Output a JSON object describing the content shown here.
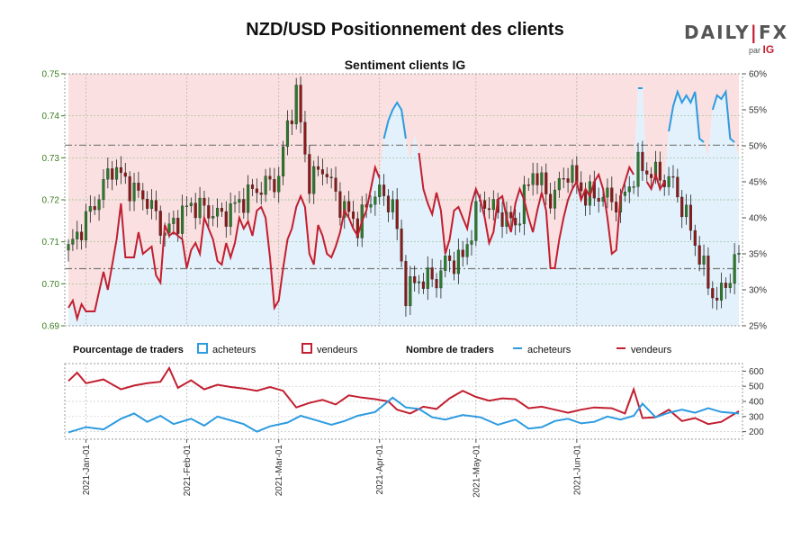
{
  "title": "NZD/USD Positionnement des clients",
  "logo": {
    "brand_left": "DAILY",
    "brand_sep": "|",
    "brand_right": "FX",
    "by": "par",
    "ig": "IG"
  },
  "colors": {
    "buyers": "#2d9be0",
    "sellers": "#c21f30",
    "pink_fill": "#fae0e0",
    "blue_fill": "#e2f1fb",
    "candle_up": "#2a7a2a",
    "candle_down": "#8a1a1a",
    "left_axis": "#3a7d1e",
    "ref_line": "#777777"
  },
  "chart_data": [
    {
      "id": "sentiment",
      "type": "candlestick+line",
      "subtitle": "Sentiment clients IG",
      "y_left": {
        "ticks": [
          "0.69",
          "0.70",
          "0.71",
          "0.72",
          "0.73",
          "0.74",
          "0.75"
        ],
        "range": [
          0.69,
          0.75
        ]
      },
      "y_right": {
        "ticks": [
          "25%",
          "30%",
          "35%",
          "40%",
          "45%",
          "50%",
          "55%",
          "60%"
        ],
        "range": [
          25,
          60
        ]
      },
      "x_ticks": [
        "2021-Jan-01",
        "2021-Feb-01",
        "2021-Mar-01",
        "2021-Apr-01",
        "2021-May-01",
        "2021-Jun-01"
      ],
      "ref_lines": [
        0.733,
        0.7036
      ],
      "long_pct_series": [
        [
          0,
          27.5
        ],
        [
          1,
          28.5
        ],
        [
          2,
          26.0
        ],
        [
          3,
          28.0
        ],
        [
          4,
          27.0
        ],
        [
          6,
          27.0
        ],
        [
          8,
          32.5
        ],
        [
          9,
          30.0
        ],
        [
          11,
          37.0
        ],
        [
          12,
          42.0
        ],
        [
          13,
          34.5
        ],
        [
          15,
          34.5
        ],
        [
          16,
          38.0
        ],
        [
          17,
          35.0
        ],
        [
          19,
          36.0
        ],
        [
          20,
          32.0
        ],
        [
          21,
          31.0
        ],
        [
          22,
          39.0
        ],
        [
          23,
          37.5
        ],
        [
          24,
          38.0
        ],
        [
          26,
          37.0
        ],
        [
          27,
          33.0
        ],
        [
          28,
          35.5
        ],
        [
          29,
          36.5
        ],
        [
          30,
          35.0
        ],
        [
          31,
          40.0
        ],
        [
          32,
          38.5
        ],
        [
          33,
          37.0
        ],
        [
          34,
          34.0
        ],
        [
          35,
          33.5
        ],
        [
          36,
          36.5
        ],
        [
          37,
          34.5
        ],
        [
          38,
          36.5
        ],
        [
          39,
          40.0
        ],
        [
          40,
          38.5
        ],
        [
          41,
          39.5
        ],
        [
          42,
          37.5
        ],
        [
          43,
          41.0
        ],
        [
          44,
          41.5
        ],
        [
          45,
          40.0
        ],
        [
          46,
          34.5
        ],
        [
          47,
          27.5
        ],
        [
          48,
          28.5
        ],
        [
          49,
          33.0
        ],
        [
          50,
          37.0
        ],
        [
          51,
          38.5
        ],
        [
          52,
          41.5
        ],
        [
          53,
          43.0
        ],
        [
          54,
          41.5
        ],
        [
          55,
          35.0
        ],
        [
          56,
          33.5
        ],
        [
          57,
          39.0
        ],
        [
          58,
          37.5
        ],
        [
          59,
          35.0
        ],
        [
          60,
          34.5
        ],
        [
          61,
          36.0
        ],
        [
          62,
          38.0
        ],
        [
          63,
          41.0
        ],
        [
          64,
          40.0
        ],
        [
          65,
          38.5
        ],
        [
          66,
          37.5
        ],
        [
          67,
          39.5
        ],
        [
          68,
          41.0
        ],
        [
          69,
          44.0
        ],
        [
          70,
          47.0
        ],
        [
          71,
          45.5
        ],
        [
          72,
          51.0
        ],
        [
          73,
          53.5
        ],
        [
          74,
          55.0
        ],
        [
          75,
          56.0
        ],
        [
          76,
          55.0
        ],
        [
          77,
          51.0
        ],
        [
          78,
          48.0
        ],
        [
          79,
          51.5
        ],
        [
          80,
          49.0
        ],
        [
          81,
          44.0
        ],
        [
          82,
          42.0
        ],
        [
          83,
          40.5
        ],
        [
          84,
          43.5
        ],
        [
          85,
          41.0
        ],
        [
          86,
          35.0
        ],
        [
          87,
          37.0
        ],
        [
          88,
          41.0
        ],
        [
          89,
          41.5
        ],
        [
          90,
          40.0
        ],
        [
          91,
          38.5
        ],
        [
          92,
          42.0
        ],
        [
          93,
          44.0
        ],
        [
          94,
          42.5
        ],
        [
          95,
          40.0
        ],
        [
          96,
          36.5
        ],
        [
          97,
          38.0
        ],
        [
          98,
          42.5
        ],
        [
          99,
          43.0
        ],
        [
          100,
          40.0
        ],
        [
          101,
          38.0
        ],
        [
          102,
          42.0
        ],
        [
          103,
          44.0
        ],
        [
          104,
          42.5
        ],
        [
          105,
          40.0
        ],
        [
          106,
          38.0
        ],
        [
          107,
          41.0
        ],
        [
          108,
          43.5
        ],
        [
          109,
          41.0
        ],
        [
          110,
          33.0
        ],
        [
          111,
          33.0
        ],
        [
          112,
          37.0
        ],
        [
          113,
          40.0
        ],
        [
          114,
          42.5
        ],
        [
          115,
          44.0
        ],
        [
          116,
          45.0
        ],
        [
          117,
          42.5
        ],
        [
          118,
          44.0
        ],
        [
          119,
          43.0
        ],
        [
          120,
          45.0
        ],
        [
          121,
          46.0
        ],
        [
          122,
          44.0
        ],
        [
          123,
          40.0
        ],
        [
          124,
          35.0
        ],
        [
          125,
          35.5
        ],
        [
          126,
          43.0
        ],
        [
          127,
          45.0
        ],
        [
          128,
          47.0
        ],
        [
          129,
          46.0
        ],
        [
          130,
          58.0
        ],
        [
          131,
          58.0
        ],
        [
          132,
          45.0
        ],
        [
          133,
          44.0
        ],
        [
          134,
          46.0
        ],
        [
          135,
          44.0
        ],
        [
          136,
          45.0
        ],
        [
          137,
          52.0
        ],
        [
          138,
          55.5
        ],
        [
          139,
          57.5
        ],
        [
          140,
          56.0
        ],
        [
          141,
          57.0
        ],
        [
          142,
          56.0
        ],
        [
          143,
          57.5
        ],
        [
          144,
          51.0
        ],
        [
          145,
          50.5
        ],
        [
          146,
          48.5
        ],
        [
          147,
          55.0
        ],
        [
          148,
          57.0
        ],
        [
          149,
          56.5
        ],
        [
          150,
          57.5
        ],
        [
          151,
          51.0
        ],
        [
          152,
          50.5
        ],
        [
          153,
          48.5
        ]
      ],
      "price_path": [
        [
          0,
          0.708
        ],
        [
          6,
          0.719
        ],
        [
          10,
          0.728
        ],
        [
          15,
          0.722
        ],
        [
          18,
          0.72
        ],
        [
          22,
          0.712
        ],
        [
          28,
          0.719
        ],
        [
          35,
          0.716
        ],
        [
          42,
          0.722
        ],
        [
          48,
          0.725
        ],
        [
          50,
          0.738
        ],
        [
          52,
          0.745
        ],
        [
          55,
          0.724
        ],
        [
          58,
          0.728
        ],
        [
          62,
          0.719
        ],
        [
          66,
          0.714
        ],
        [
          70,
          0.722
        ],
        [
          74,
          0.719
        ],
        [
          77,
          0.698
        ],
        [
          80,
          0.701
        ],
        [
          84,
          0.701
        ],
        [
          86,
          0.705
        ],
        [
          90,
          0.706
        ],
        [
          94,
          0.72
        ],
        [
          98,
          0.717
        ],
        [
          102,
          0.714
        ],
        [
          106,
          0.727
        ],
        [
          110,
          0.72
        ],
        [
          114,
          0.727
        ],
        [
          118,
          0.721
        ],
        [
          122,
          0.721
        ],
        [
          126,
          0.719
        ],
        [
          130,
          0.728
        ],
        [
          134,
          0.726
        ],
        [
          138,
          0.724
        ],
        [
          142,
          0.713
        ],
        [
          146,
          0.7
        ],
        [
          148,
          0.696
        ],
        [
          150,
          0.7
        ],
        [
          153,
          0.707
        ]
      ]
    },
    {
      "id": "trader_counts",
      "type": "line",
      "y_ticks": [
        "200",
        "300",
        "400",
        "500",
        "600"
      ],
      "y_range": [
        150,
        650
      ],
      "buyers_series": [
        [
          0,
          195
        ],
        [
          4,
          230
        ],
        [
          8,
          215
        ],
        [
          12,
          285
        ],
        [
          15,
          320
        ],
        [
          18,
          265
        ],
        [
          21,
          305
        ],
        [
          24,
          250
        ],
        [
          28,
          285
        ],
        [
          31,
          240
        ],
        [
          34,
          300
        ],
        [
          37,
          275
        ],
        [
          40,
          250
        ],
        [
          43,
          200
        ],
        [
          46,
          235
        ],
        [
          50,
          260
        ],
        [
          53,
          305
        ],
        [
          56,
          280
        ],
        [
          60,
          245
        ],
        [
          63,
          270
        ],
        [
          66,
          305
        ],
        [
          70,
          330
        ],
        [
          74,
          425
        ],
        [
          77,
          360
        ],
        [
          80,
          350
        ],
        [
          83,
          295
        ],
        [
          86,
          280
        ],
        [
          90,
          310
        ],
        [
          94,
          295
        ],
        [
          98,
          245
        ],
        [
          102,
          280
        ],
        [
          105,
          220
        ],
        [
          108,
          230
        ],
        [
          111,
          270
        ],
        [
          114,
          285
        ],
        [
          117,
          255
        ],
        [
          120,
          265
        ],
        [
          123,
          300
        ],
        [
          126,
          280
        ],
        [
          129,
          305
        ],
        [
          131,
          385
        ],
        [
          134,
          295
        ],
        [
          137,
          325
        ],
        [
          140,
          345
        ],
        [
          143,
          325
        ],
        [
          146,
          355
        ],
        [
          149,
          330
        ],
        [
          153,
          320
        ]
      ],
      "sellers_series": [
        [
          0,
          535
        ],
        [
          2,
          590
        ],
        [
          4,
          520
        ],
        [
          8,
          545
        ],
        [
          12,
          480
        ],
        [
          15,
          505
        ],
        [
          18,
          520
        ],
        [
          21,
          530
        ],
        [
          23,
          620
        ],
        [
          25,
          490
        ],
        [
          28,
          540
        ],
        [
          31,
          480
        ],
        [
          34,
          510
        ],
        [
          37,
          495
        ],
        [
          40,
          485
        ],
        [
          43,
          470
        ],
        [
          46,
          495
        ],
        [
          49,
          470
        ],
        [
          52,
          360
        ],
        [
          55,
          390
        ],
        [
          58,
          410
        ],
        [
          61,
          380
        ],
        [
          64,
          440
        ],
        [
          67,
          425
        ],
        [
          70,
          415
        ],
        [
          73,
          400
        ],
        [
          75,
          345
        ],
        [
          78,
          320
        ],
        [
          81,
          365
        ],
        [
          84,
          350
        ],
        [
          87,
          420
        ],
        [
          90,
          470
        ],
        [
          93,
          430
        ],
        [
          96,
          405
        ],
        [
          99,
          420
        ],
        [
          102,
          415
        ],
        [
          105,
          355
        ],
        [
          108,
          365
        ],
        [
          111,
          345
        ],
        [
          114,
          325
        ],
        [
          117,
          345
        ],
        [
          120,
          360
        ],
        [
          124,
          355
        ],
        [
          127,
          320
        ],
        [
          129,
          480
        ],
        [
          131,
          290
        ],
        [
          134,
          295
        ],
        [
          137,
          345
        ],
        [
          140,
          270
        ],
        [
          143,
          290
        ],
        [
          146,
          250
        ],
        [
          149,
          265
        ],
        [
          153,
          335
        ]
      ],
      "x_ticks": [
        "2021-Jan-01",
        "2021-Feb-01",
        "2021-Mar-01",
        "2021-Apr-01",
        "2021-May-01",
        "2021-Jun-01"
      ]
    }
  ],
  "legend": {
    "pct_title": "Pourcentage de traders",
    "pct_buyers": "acheteurs",
    "pct_sellers": "vendeurs",
    "count_title": "Nombre de traders",
    "count_buyers": "acheteurs",
    "count_sellers": "vendeurs"
  }
}
